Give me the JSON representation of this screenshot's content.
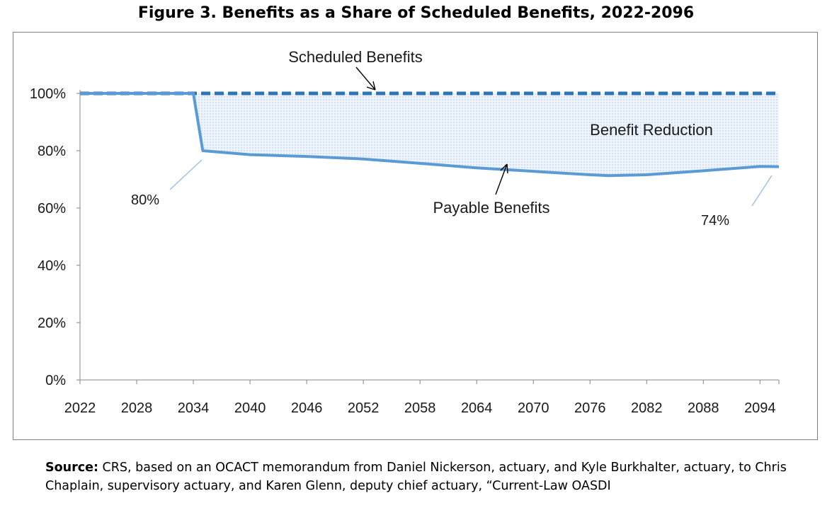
{
  "figure": {
    "title": "Figure 3. Benefits as a Share of Scheduled Benefits, 2022-2096",
    "source_label": "Source:",
    "source_text": "CRS, based on an OCACT memorandum from Daniel Nickerson, actuary, and Kyle Burkhalter, actuary, to Chris Chaplain, supervisory actuary, and Karen Glenn, deputy chief actuary, “Current-Law OASDI"
  },
  "chart_data": {
    "type": "line",
    "title": "Figure 3. Benefits as a Share of Scheduled Benefits, 2022-2096",
    "xlabel": "",
    "ylabel": "",
    "xlim": [
      2022,
      2096
    ],
    "ylim": [
      0,
      100
    ],
    "x_ticks": [
      "2022",
      "2028",
      "2034",
      "2040",
      "2046",
      "2052",
      "2058",
      "2064",
      "2070",
      "2076",
      "2082",
      "2088",
      "2094"
    ],
    "y_ticks": [
      "0%",
      "20%",
      "40%",
      "60%",
      "80%",
      "100%"
    ],
    "grid": false,
    "series": [
      {
        "name": "Scheduled Benefits",
        "style": "dashed",
        "color": "#2e75b6",
        "points": [
          [
            2022,
            100
          ],
          [
            2096,
            100
          ]
        ]
      },
      {
        "name": "Payable Benefits",
        "style": "solid",
        "color": "#5b9bd5",
        "points": [
          [
            2022,
            100
          ],
          [
            2034,
            100
          ],
          [
            2035,
            80
          ],
          [
            2040,
            78.6
          ],
          [
            2046,
            78
          ],
          [
            2052,
            77.1
          ],
          [
            2058,
            75.6
          ],
          [
            2064,
            74
          ],
          [
            2070,
            72.8
          ],
          [
            2076,
            71.6
          ],
          [
            2078,
            71.3
          ],
          [
            2082,
            71.6
          ],
          [
            2088,
            73
          ],
          [
            2094,
            74.5
          ],
          [
            2096,
            74.4
          ]
        ]
      }
    ],
    "shaded_area": {
      "label": "Benefit Reduction",
      "between": [
        "Scheduled Benefits",
        "Payable Benefits"
      ],
      "color": "#dbe8f5"
    },
    "annotations": [
      {
        "id": "scheduled",
        "text": "Scheduled Benefits"
      },
      {
        "id": "reduction",
        "text": "Benefit Reduction"
      },
      {
        "id": "payable",
        "text": "Payable Benefits"
      },
      {
        "id": "start",
        "text": "80%"
      },
      {
        "id": "end",
        "text": "74%"
      }
    ]
  }
}
